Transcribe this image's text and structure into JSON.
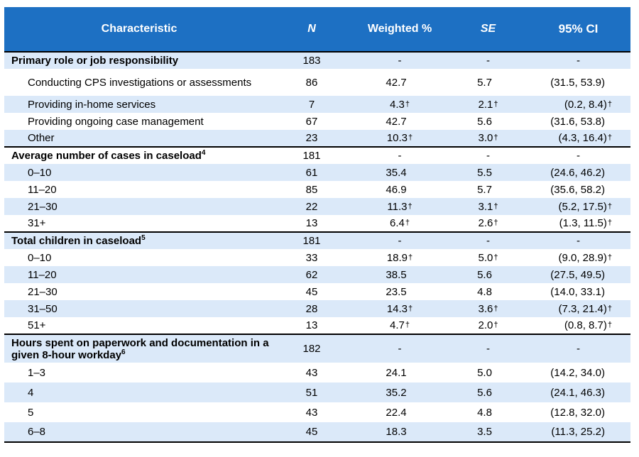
{
  "header": {
    "characteristic": "Characteristic",
    "n": "N",
    "weighted_pct": "Weighted %",
    "se": "SE",
    "ci": "95% CI"
  },
  "dagger_symbol": "†",
  "groups": [
    {
      "title": "Primary role or job responsibility",
      "footnote": "",
      "n": "183",
      "pct": "-",
      "se": "-",
      "ci": "-",
      "rows": [
        {
          "label": "Conducting CPS investigations or assessments",
          "n": "86",
          "pct": "42.7",
          "pct_flag": false,
          "se": "5.7",
          "se_flag": false,
          "ci": "(31.5, 53.9)",
          "ci_flag": false
        },
        {
          "label": "Providing in-home services",
          "n": "7",
          "pct": "4.3",
          "pct_flag": true,
          "se": "2.1",
          "se_flag": true,
          "ci": "(0.2, 8.4)",
          "ci_flag": true
        },
        {
          "label": "Providing ongoing case management",
          "n": "67",
          "pct": "42.7",
          "pct_flag": false,
          "se": "5.6",
          "se_flag": false,
          "ci": "(31.6, 53.8)",
          "ci_flag": false
        },
        {
          "label": "Other",
          "n": "23",
          "pct": "10.3",
          "pct_flag": true,
          "se": "3.0",
          "se_flag": true,
          "ci": "(4.3, 16.4)",
          "ci_flag": true
        }
      ]
    },
    {
      "title": "Average number of cases in caseload",
      "footnote": "4",
      "n": "181",
      "pct": "-",
      "se": "-",
      "ci": "-",
      "rows": [
        {
          "label": "0–10",
          "n": "61",
          "pct": "35.4",
          "pct_flag": false,
          "se": "5.5",
          "se_flag": false,
          "ci": "(24.6, 46.2)",
          "ci_flag": false
        },
        {
          "label": "11–20",
          "n": "85",
          "pct": "46.9",
          "pct_flag": false,
          "se": "5.7",
          "se_flag": false,
          "ci": "(35.6, 58.2)",
          "ci_flag": false
        },
        {
          "label": "21–30",
          "n": "22",
          "pct": "11.3",
          "pct_flag": true,
          "se": "3.1",
          "se_flag": true,
          "ci": "(5.2, 17.5)",
          "ci_flag": true
        },
        {
          "label": "31+",
          "n": "13",
          "pct": "6.4",
          "pct_flag": true,
          "se": "2.6",
          "se_flag": true,
          "ci": "(1.3, 11.5)",
          "ci_flag": true
        }
      ]
    },
    {
      "title": "Total children in caseload",
      "footnote": "5",
      "n": "181",
      "pct": "-",
      "se": "-",
      "ci": "-",
      "rows": [
        {
          "label": "0–10",
          "n": "33",
          "pct": "18.9",
          "pct_flag": true,
          "se": "5.0",
          "se_flag": true,
          "ci": "(9.0, 28.9)",
          "ci_flag": true
        },
        {
          "label": "11–20",
          "n": "62",
          "pct": "38.5",
          "pct_flag": false,
          "se": "5.6",
          "se_flag": false,
          "ci": "(27.5, 49.5)",
          "ci_flag": false
        },
        {
          "label": "21–30",
          "n": "45",
          "pct": "23.5",
          "pct_flag": false,
          "se": "4.8",
          "se_flag": false,
          "ci": "(14.0, 33.1)",
          "ci_flag": false
        },
        {
          "label": "31–50",
          "n": "28",
          "pct": "14.3",
          "pct_flag": true,
          "se": "3.6",
          "se_flag": true,
          "ci": "(7.3, 21.4)",
          "ci_flag": true
        },
        {
          "label": "51+",
          "n": "13",
          "pct": "4.7",
          "pct_flag": true,
          "se": "2.0",
          "se_flag": true,
          "ci": "(0.8, 8.7)",
          "ci_flag": true
        }
      ]
    },
    {
      "title": "Hours spent on paperwork and documentation in a given 8-hour workday",
      "footnote": "6",
      "n": "182",
      "pct": "-",
      "se": "-",
      "ci": "-",
      "rows": [
        {
          "label": "1–3",
          "n": "43",
          "pct": "24.1",
          "pct_flag": false,
          "se": "5.0",
          "se_flag": false,
          "ci": "(14.2, 34.0)",
          "ci_flag": false
        },
        {
          "label": "4",
          "n": "51",
          "pct": "35.2",
          "pct_flag": false,
          "se": "5.6",
          "se_flag": false,
          "ci": "(24.1, 46.3)",
          "ci_flag": false
        },
        {
          "label": "5",
          "n": "43",
          "pct": "22.4",
          "pct_flag": false,
          "se": "4.8",
          "se_flag": false,
          "ci": "(12.8, 32.0)",
          "ci_flag": false
        },
        {
          "label": "6–8",
          "n": "45",
          "pct": "18.3",
          "pct_flag": false,
          "se": "3.5",
          "se_flag": false,
          "ci": "(11.3, 25.2)",
          "ci_flag": false
        }
      ]
    }
  ]
}
